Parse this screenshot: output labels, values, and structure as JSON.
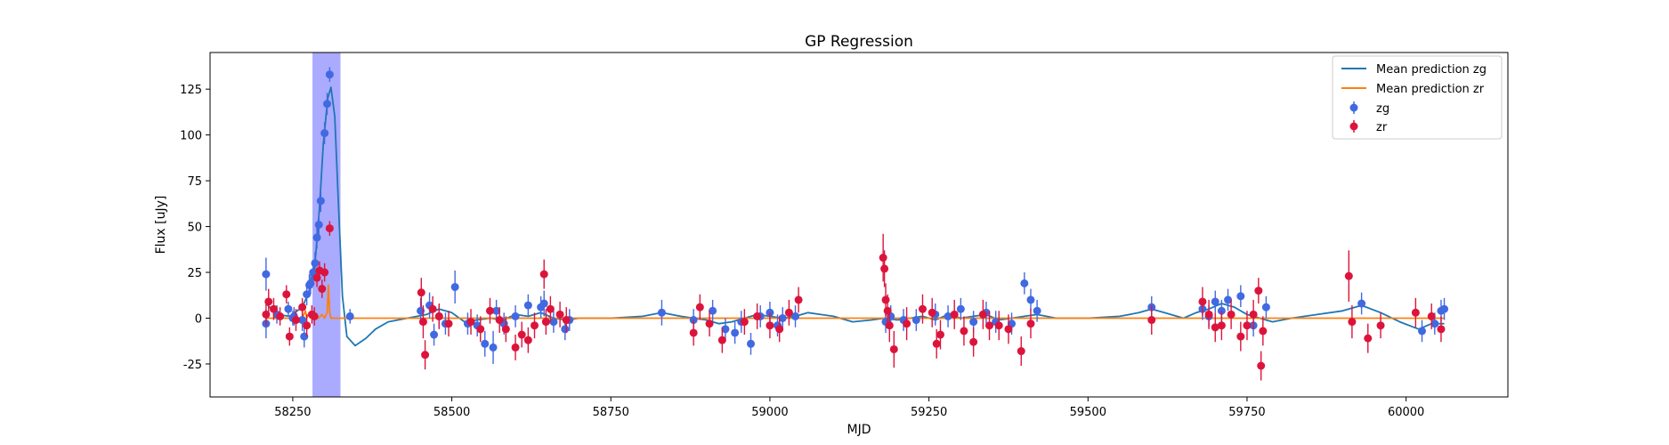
{
  "chart_data": {
    "type": "scatter",
    "title": "GP Regression",
    "xlabel": "MJD",
    "ylabel": "Flux [uJy]",
    "xlim": [
      58120,
      60160
    ],
    "ylim": [
      -43,
      145
    ],
    "xticks": [
      58250,
      58500,
      58750,
      59000,
      59250,
      59500,
      59750,
      60000
    ],
    "yticks": [
      -25,
      0,
      25,
      50,
      75,
      100,
      125
    ],
    "grid": false,
    "legend_position": "top-right",
    "highlight_band": {
      "x0": 58281,
      "x1": 58325,
      "color": "#aaaaff"
    },
    "colors": {
      "zg": "#4169e1",
      "zr": "#dc143c",
      "mean_zg": "#1f77b4",
      "mean_zr": "#ff7f0e"
    },
    "legend": [
      "Mean prediction zg",
      "Mean prediction zr",
      "zg",
      "zr"
    ],
    "series": [
      {
        "name": "zg",
        "kind": "errorbar",
        "x": [
          58208,
          58208,
          58225,
          58243,
          58250,
          58252,
          58265,
          58268,
          58272,
          58276,
          58278,
          58282,
          58285,
          58288,
          58291,
          58294,
          58300,
          58304,
          58308,
          58340,
          58451,
          58465,
          58472,
          58480,
          58490,
          58505,
          58525,
          58540,
          58552,
          58565,
          58570,
          58582,
          58600,
          58620,
          58640,
          58645,
          58660,
          58678,
          58685,
          58830,
          58880,
          58910,
          58930,
          58945,
          58955,
          58970,
          58985,
          59000,
          59012,
          59020,
          59040,
          59182,
          59190,
          59210,
          59230,
          59260,
          59280,
          59300,
          59320,
          59340,
          59355,
          59380,
          59400,
          59410,
          59420,
          59600,
          59680,
          59690,
          59700,
          59710,
          59720,
          59740,
          59760,
          59780,
          59930,
          60025,
          60045,
          60055,
          60060
        ],
        "y": [
          24,
          -3,
          2,
          5,
          0,
          1,
          -1,
          -10,
          13,
          18,
          19,
          25,
          30,
          44,
          51,
          64,
          101,
          117,
          133,
          1,
          4,
          7,
          -9,
          1,
          -3,
          17,
          -3,
          -4,
          -14,
          -16,
          4,
          -3,
          1,
          7,
          6,
          8,
          -2,
          -6,
          -1,
          3,
          -1,
          4,
          -6,
          -8,
          -2,
          -14,
          1,
          3,
          -4,
          0,
          1,
          -2,
          1,
          -1,
          -1,
          2,
          1,
          5,
          -2,
          3,
          -2,
          -3,
          19,
          10,
          4,
          6,
          5,
          1,
          9,
          4,
          10,
          12,
          -4,
          6,
          8,
          -7,
          -3,
          4,
          5
        ],
        "err": [
          9,
          8,
          5,
          4,
          4,
          5,
          6,
          6,
          6,
          6,
          6,
          6,
          6,
          6,
          6,
          6,
          6,
          6,
          4,
          4,
          7,
          7,
          6,
          6,
          6,
          9,
          6,
          6,
          7,
          9,
          6,
          6,
          6,
          6,
          6,
          7,
          6,
          6,
          6,
          7,
          6,
          6,
          6,
          6,
          6,
          6,
          6,
          6,
          6,
          6,
          6,
          6,
          6,
          6,
          6,
          6,
          6,
          6,
          6,
          6,
          6,
          6,
          6,
          6,
          6,
          6,
          6,
          6,
          6,
          6,
          6,
          6,
          6,
          6,
          6,
          6,
          6,
          6,
          6
        ]
      },
      {
        "name": "zr",
        "kind": "errorbar",
        "x": [
          58208,
          58212,
          58220,
          58230,
          58240,
          58245,
          58255,
          58265,
          58272,
          58280,
          58284,
          58288,
          58292,
          58296,
          58300,
          58308,
          58452,
          58455,
          58458,
          58470,
          58480,
          58495,
          58530,
          58545,
          58560,
          58575,
          58585,
          58600,
          58610,
          58620,
          58630,
          58645,
          58648,
          58655,
          58670,
          58680,
          58880,
          58890,
          58905,
          58925,
          58960,
          58980,
          59000,
          59015,
          59030,
          59045,
          59178,
          59180,
          59182,
          59185,
          59188,
          59195,
          59215,
          59240,
          59255,
          59262,
          59268,
          59290,
          59305,
          59320,
          59335,
          59345,
          59360,
          59375,
          59395,
          59410,
          59600,
          59680,
          59690,
          59700,
          59710,
          59725,
          59740,
          59750,
          59760,
          59768,
          59772,
          59775,
          59910,
          59915,
          59940,
          59960,
          60015,
          60040,
          60055
        ],
        "y": [
          2,
          9,
          5,
          1,
          13,
          -10,
          -1,
          6,
          -4,
          2,
          1,
          22,
          26,
          16,
          25,
          49,
          14,
          -2,
          -20,
          5,
          1,
          -3,
          -2,
          -6,
          4,
          -1,
          -6,
          -16,
          -9,
          -12,
          -4,
          24,
          -2,
          5,
          2,
          -1,
          -8,
          6,
          -3,
          -12,
          -2,
          1,
          -4,
          -6,
          3,
          10,
          33,
          27,
          10,
          4,
          -4,
          -17,
          -3,
          5,
          3,
          -14,
          -9,
          2,
          -7,
          -13,
          2,
          -4,
          -4,
          -6,
          -18,
          -3,
          -1,
          9,
          2,
          -5,
          -4,
          2,
          -10,
          -4,
          2,
          15,
          -26,
          -7,
          23,
          -2,
          -11,
          -4,
          3,
          1,
          -6
        ],
        "err": [
          6,
          7,
          6,
          5,
          5,
          5,
          6,
          5,
          6,
          5,
          5,
          5,
          5,
          5,
          5,
          4,
          8,
          9,
          8,
          7,
          7,
          7,
          7,
          7,
          7,
          7,
          7,
          7,
          7,
          7,
          7,
          8,
          7,
          7,
          7,
          7,
          7,
          7,
          7,
          7,
          7,
          7,
          7,
          7,
          7,
          7,
          13,
          10,
          9,
          9,
          9,
          10,
          9,
          8,
          8,
          8,
          8,
          8,
          8,
          8,
          8,
          8,
          8,
          8,
          8,
          8,
          8,
          8,
          8,
          8,
          8,
          8,
          8,
          8,
          8,
          7,
          8,
          8,
          14,
          9,
          8,
          7,
          8,
          7,
          7
        ]
      },
      {
        "name": "Mean prediction zg",
        "kind": "line",
        "x": [
          58208,
          58225,
          58245,
          58265,
          58275,
          58285,
          58292,
          58298,
          58305,
          58310,
          58316,
          58322,
          58328,
          58335,
          58348,
          58365,
          58380,
          58400,
          58430,
          58460,
          58480,
          58500,
          58520,
          58540,
          58560,
          58580,
          58600,
          58620,
          58640,
          58660,
          58680,
          58700,
          58750,
          58800,
          58830,
          58860,
          58880,
          58900,
          58920,
          58940,
          58960,
          58980,
          59000,
          59020,
          59040,
          59060,
          59080,
          59100,
          59130,
          59160,
          59180,
          59200,
          59220,
          59240,
          59260,
          59280,
          59300,
          59320,
          59340,
          59360,
          59380,
          59400,
          59420,
          59450,
          59500,
          59550,
          59580,
          59600,
          59620,
          59650,
          59670,
          59690,
          59710,
          59730,
          59750,
          59770,
          59790,
          59820,
          59860,
          59900,
          59930,
          59960,
          59990,
          60020,
          60040,
          60060
        ],
        "y": [
          8,
          2,
          1,
          6,
          14,
          30,
          60,
          95,
          120,
          126,
          110,
          60,
          12,
          -10,
          -15,
          -11,
          -6,
          -2,
          0,
          2,
          5,
          3,
          -2,
          -1,
          0,
          -1,
          2,
          1,
          3,
          0,
          -1,
          0,
          0,
          1,
          3,
          1,
          0,
          -1,
          -3,
          -2,
          0,
          2,
          1,
          0,
          1,
          3,
          2,
          1,
          -2,
          -1,
          0,
          -1,
          0,
          1,
          -1,
          2,
          0,
          1,
          2,
          -1,
          0,
          1,
          2,
          0,
          0,
          1,
          3,
          5,
          3,
          0,
          3,
          5,
          8,
          6,
          2,
          0,
          -2,
          0,
          2,
          4,
          7,
          3,
          -2,
          -6,
          -3,
          -3
        ]
      },
      {
        "name": "Mean prediction zr",
        "kind": "line",
        "x": [
          58208,
          58265,
          58270,
          58272,
          58274,
          58278,
          58284,
          58290,
          58296,
          58300,
          58304,
          58306,
          58308,
          58310,
          58314,
          58320,
          58400,
          58600,
          58800,
          59000,
          59200,
          59400,
          59600,
          59800,
          60000,
          60060
        ],
        "y": [
          0,
          0,
          4,
          0,
          2,
          0,
          1,
          0,
          2,
          0,
          3,
          18,
          3,
          0,
          0,
          0,
          0,
          0,
          0,
          0,
          0,
          0,
          0,
          0,
          0,
          0
        ]
      }
    ]
  }
}
